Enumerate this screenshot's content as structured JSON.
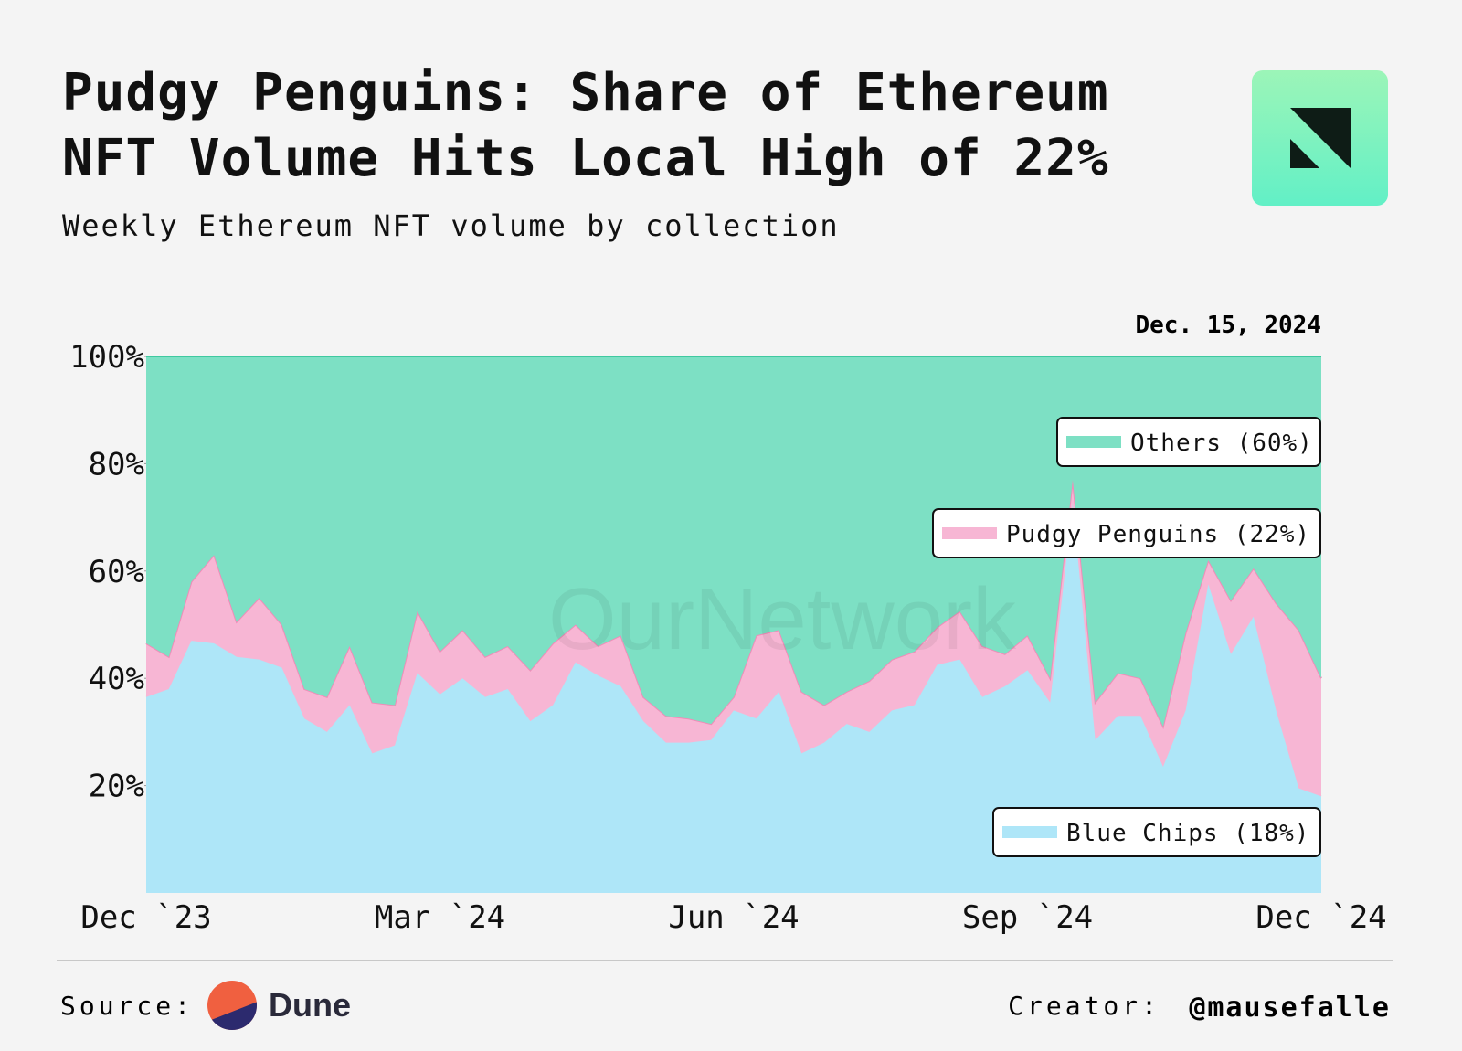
{
  "header": {
    "title": "Pudgy Penguins: Share of Ethereum NFT Volume Hits Local High of 22%",
    "subtitle": "Weekly Ethereum NFT volume by collection"
  },
  "chart_data": {
    "type": "stacked-area",
    "annotation": "Dec. 15, 2024",
    "watermark": "OurNetwork",
    "categories": [
      "Dec `23",
      null,
      null,
      null,
      null,
      null,
      null,
      null,
      null,
      null,
      null,
      null,
      null,
      "Mar `24",
      null,
      null,
      null,
      null,
      null,
      null,
      null,
      null,
      null,
      null,
      null,
      null,
      "Jun `24",
      null,
      null,
      null,
      null,
      null,
      null,
      null,
      null,
      null,
      null,
      null,
      null,
      "Sep `24",
      null,
      null,
      null,
      null,
      null,
      null,
      null,
      null,
      null,
      null,
      null,
      null,
      "Dec `24"
    ],
    "ylim": [
      0,
      100
    ],
    "yticks": [
      {
        "value": 20,
        "label": "20%"
      },
      {
        "value": 40,
        "label": "40%"
      },
      {
        "value": 60,
        "label": "60%"
      },
      {
        "value": 80,
        "label": "80%"
      },
      {
        "value": 100,
        "label": "100%"
      }
    ],
    "series": [
      {
        "name": "Blue Chips (18%)",
        "color": "#aee6f8",
        "values": [
          36.5,
          38,
          47,
          46.5,
          44,
          43.5,
          42,
          32.5,
          30,
          35,
          26,
          27.5,
          41,
          37,
          40,
          36.5,
          38,
          32,
          35,
          43,
          40.5,
          38.5,
          32,
          28,
          28,
          28.5,
          34,
          32.5,
          37.5,
          26,
          28,
          31.5,
          30,
          34,
          35,
          42.5,
          43.5,
          36.5,
          38.5,
          41.5,
          35.5,
          72.5,
          28.5,
          33,
          33,
          23.5,
          34,
          57.5,
          44.5,
          51.5,
          34,
          19.5,
          18
        ]
      },
      {
        "name": "Pudgy Penguins (22%)",
        "color": "#f7b6d4",
        "values": [
          10,
          6,
          11,
          16.5,
          6.5,
          11.5,
          8,
          5.5,
          6.5,
          11,
          9.5,
          7.5,
          11.5,
          8,
          9,
          7.5,
          8,
          9.5,
          11.5,
          7,
          5.5,
          9.5,
          4.5,
          5,
          4.5,
          3,
          2.5,
          15.5,
          11.5,
          11.5,
          7,
          6,
          9.5,
          9.5,
          10,
          7,
          9,
          9.5,
          6,
          6.5,
          4.5,
          4.5,
          7,
          8,
          7,
          7.5,
          14.5,
          4.5,
          10,
          9,
          20,
          29.5,
          22
        ]
      },
      {
        "name": "Others (60%)",
        "color": "#7de0c4",
        "values": [
          53.5,
          56,
          42,
          37,
          49.5,
          45,
          50,
          62,
          63.5,
          54,
          64.5,
          65,
          47.5,
          55,
          51,
          56,
          54,
          58.5,
          53.5,
          50,
          54,
          52,
          63.5,
          67,
          67.5,
          68.5,
          63.5,
          52,
          51,
          62.5,
          65,
          62.5,
          60.5,
          56.5,
          55,
          50.5,
          47.5,
          54,
          55.5,
          52,
          60,
          23,
          64.5,
          59,
          60,
          69,
          51.5,
          38,
          45.5,
          39.5,
          46,
          51,
          60
        ]
      }
    ]
  },
  "footer": {
    "source_label": "Source:",
    "source": "Dune",
    "creator_label": "Creator:",
    "creator": "@mausefalle"
  }
}
